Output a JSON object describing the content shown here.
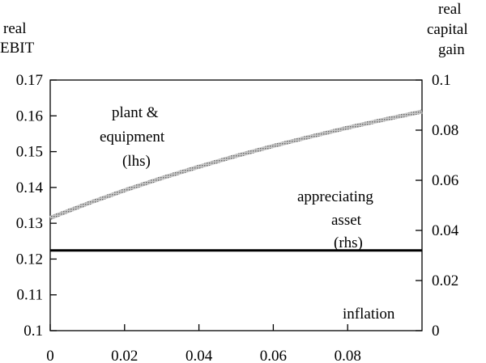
{
  "chart_data": {
    "type": "line",
    "x": {
      "min": 0,
      "max": 0.1,
      "ticks": [
        0,
        0.02,
        0.04,
        0.06,
        0.08
      ],
      "tick_labels": [
        "0",
        "0.02",
        "0.04",
        "0.06",
        "0.08"
      ]
    },
    "y_left": {
      "label_lines": [
        "real",
        "EBIT"
      ],
      "min": 0.1,
      "max": 0.17,
      "ticks": [
        0.1,
        0.11,
        0.12,
        0.13,
        0.14,
        0.15,
        0.16,
        0.17
      ],
      "tick_labels": [
        "0.1",
        "0.11",
        "0.12",
        "0.13",
        "0.14",
        "0.15",
        "0.16",
        "0.17"
      ]
    },
    "y_right": {
      "label_lines": [
        "real",
        "capital",
        "gain"
      ],
      "min": 0,
      "max": 0.1,
      "ticks": [
        0,
        0.02,
        0.04,
        0.06,
        0.08,
        0.1
      ],
      "tick_labels": [
        "0",
        "0.02",
        "0.04",
        "0.06",
        "0.08",
        "0.1"
      ]
    },
    "series": [
      {
        "name": "plant & equipment (lhs)",
        "axis": "left",
        "color": "#9a9a9a",
        "style": "grey dotted band",
        "x": [
          0,
          0.01,
          0.02,
          0.03,
          0.04,
          0.05,
          0.06,
          0.07,
          0.08,
          0.09,
          0.1
        ],
        "y": [
          0.1315,
          0.1355,
          0.1392,
          0.1426,
          0.1458,
          0.1488,
          0.1516,
          0.1542,
          0.1567,
          0.159,
          0.1612
        ]
      },
      {
        "name": "appreciating asset (rhs)",
        "axis": "right",
        "color": "#000000",
        "style": "solid",
        "x": [
          0,
          0.1
        ],
        "y": [
          0.032,
          0.032
        ]
      }
    ],
    "annotations": [
      {
        "lines": [
          "plant &",
          "equipment",
          "(lhs)"
        ]
      },
      {
        "lines": [
          "appreciating",
          "asset",
          "(rhs)"
        ]
      },
      {
        "lines": [
          "inflation"
        ]
      }
    ],
    "grid": false,
    "legend": "none"
  }
}
